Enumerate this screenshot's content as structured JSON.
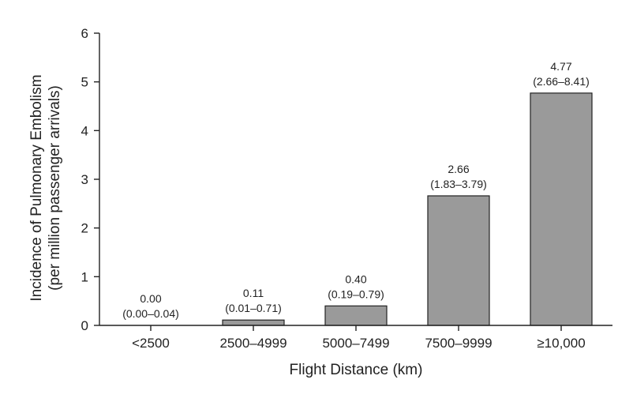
{
  "chart_data": {
    "type": "bar",
    "categories": [
      "<2500",
      "2500–4999",
      "5000–7499",
      "7500–9999",
      "≥10,000"
    ],
    "values": [
      0.0,
      0.11,
      0.4,
      2.66,
      4.77
    ],
    "value_labels": [
      "0.00",
      "0.11",
      "0.40",
      "2.66",
      "4.77"
    ],
    "ci_labels": [
      "(0.00–0.04)",
      "(0.01–0.71)",
      "(0.19–0.79)",
      "(1.83–3.79)",
      "(2.66–8.41)"
    ],
    "xlabel": "Flight Distance (km)",
    "ylabel_line1": "Incidence of Pulmonary Embolism",
    "ylabel_line2": "(per million passenger arrivals)",
    "ylim": [
      0,
      6
    ],
    "yticks": [
      0,
      1,
      2,
      3,
      4,
      5,
      6
    ],
    "grid": false,
    "bar_color": "#9a9a9a"
  }
}
